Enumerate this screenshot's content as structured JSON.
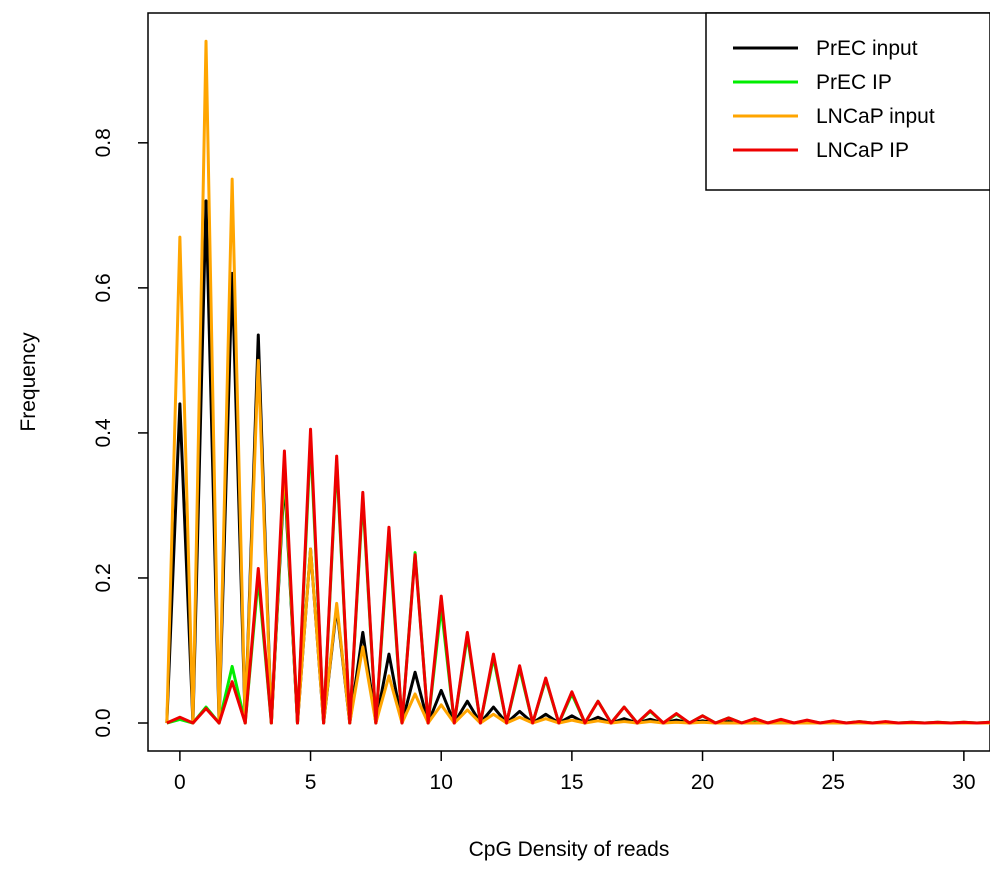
{
  "chart_data": {
    "type": "line",
    "x_label": "CpG Density of reads",
    "y_label": "Frequency",
    "x": [
      -0.5,
      0,
      0.5,
      1,
      1.5,
      2,
      2.5,
      3,
      3.5,
      4,
      4.5,
      5,
      5.5,
      6,
      6.5,
      7,
      7.5,
      8,
      8.5,
      9,
      9.5,
      10,
      10.5,
      11,
      11.5,
      12,
      12.5,
      13,
      13.5,
      14,
      14.5,
      15,
      15.5,
      16,
      16.5,
      17,
      17.5,
      18,
      18.5,
      19,
      19.5,
      20,
      20.5,
      21,
      21.5,
      22,
      22.5,
      23,
      23.5,
      24,
      24.5,
      25,
      25.5,
      26,
      26.5,
      27,
      27.5,
      28,
      28.5,
      29,
      29.5,
      30,
      30.5,
      31
    ],
    "series": [
      {
        "name": "PrEC input",
        "color": "#000000",
        "values": [
          0,
          0.44,
          0,
          0.72,
          0,
          0.62,
          0,
          0.535,
          0,
          0.34,
          0,
          0.24,
          0,
          0.16,
          0,
          0.125,
          0,
          0.095,
          0,
          0.07,
          0,
          0.045,
          0,
          0.03,
          0,
          0.022,
          0,
          0.016,
          0,
          0.012,
          0,
          0.01,
          0,
          0.008,
          0,
          0.006,
          0,
          0.005,
          0,
          0.004,
          0,
          0.003,
          0,
          0.002,
          0,
          0.002,
          0,
          0.001,
          0,
          0.001,
          0,
          0.001,
          0,
          0,
          0,
          0,
          0,
          0,
          0,
          0,
          0,
          0,
          0,
          0
        ]
      },
      {
        "name": "PrEC IP",
        "color": "#00ee00",
        "values": [
          0,
          0.005,
          0,
          0.022,
          0,
          0.078,
          0,
          0.2,
          0,
          0.35,
          0,
          0.39,
          0,
          0.36,
          0,
          0.31,
          0,
          0.26,
          0,
          0.235,
          0,
          0.16,
          0,
          0.12,
          0,
          0.09,
          0,
          0.075,
          0,
          0.06,
          0,
          0.04,
          0,
          0.03,
          0,
          0.022,
          0,
          0.016,
          0,
          0.012,
          0,
          0.01,
          0,
          0.007,
          0,
          0.005,
          0,
          0.004,
          0,
          0.003,
          0,
          0.002,
          0,
          0.002,
          0,
          0.001,
          0,
          0.001,
          0,
          0.001,
          0,
          0.001,
          0,
          0.001
        ]
      },
      {
        "name": "LNCaP input",
        "color": "#ffa500",
        "values": [
          0,
          0.67,
          0,
          0.94,
          0,
          0.75,
          0,
          0.5,
          0,
          0.36,
          0,
          0.24,
          0,
          0.165,
          0,
          0.105,
          0,
          0.065,
          0,
          0.04,
          0,
          0.025,
          0,
          0.018,
          0,
          0.012,
          0,
          0.008,
          0,
          0.006,
          0,
          0.004,
          0,
          0.003,
          0,
          0.002,
          0,
          0.002,
          0,
          0.001,
          0,
          0.001,
          0,
          0,
          0,
          0,
          0,
          0,
          0,
          0,
          0,
          0,
          0,
          0,
          0,
          0,
          0,
          0,
          0,
          0,
          0,
          0,
          0,
          0
        ]
      },
      {
        "name": "LNCaP IP",
        "color": "#ee0000",
        "values": [
          0,
          0.008,
          0,
          0.02,
          0,
          0.057,
          0,
          0.213,
          0,
          0.375,
          0,
          0.405,
          0,
          0.368,
          0,
          0.318,
          0,
          0.27,
          0,
          0.232,
          0,
          0.175,
          0,
          0.125,
          0,
          0.095,
          0,
          0.079,
          0,
          0.062,
          0,
          0.043,
          0,
          0.03,
          0,
          0.022,
          0,
          0.017,
          0,
          0.013,
          0,
          0.01,
          0,
          0.007,
          0,
          0.006,
          0,
          0.005,
          0,
          0.004,
          0,
          0.003,
          0,
          0.002,
          0,
          0.002,
          0,
          0.001,
          0,
          0.001,
          0,
          0.001,
          0,
          0.001
        ]
      }
    ],
    "xlim": [
      -1.22,
      31.0
    ],
    "ylim": [
      -0.0386,
      0.979
    ],
    "xticks": [
      0,
      5,
      10,
      15,
      20,
      25,
      30
    ],
    "yticks": [
      {
        "value": 0,
        "label": "0.0"
      },
      0.2,
      0.4,
      0.6,
      0.8
    ],
    "legend": "top-right"
  }
}
